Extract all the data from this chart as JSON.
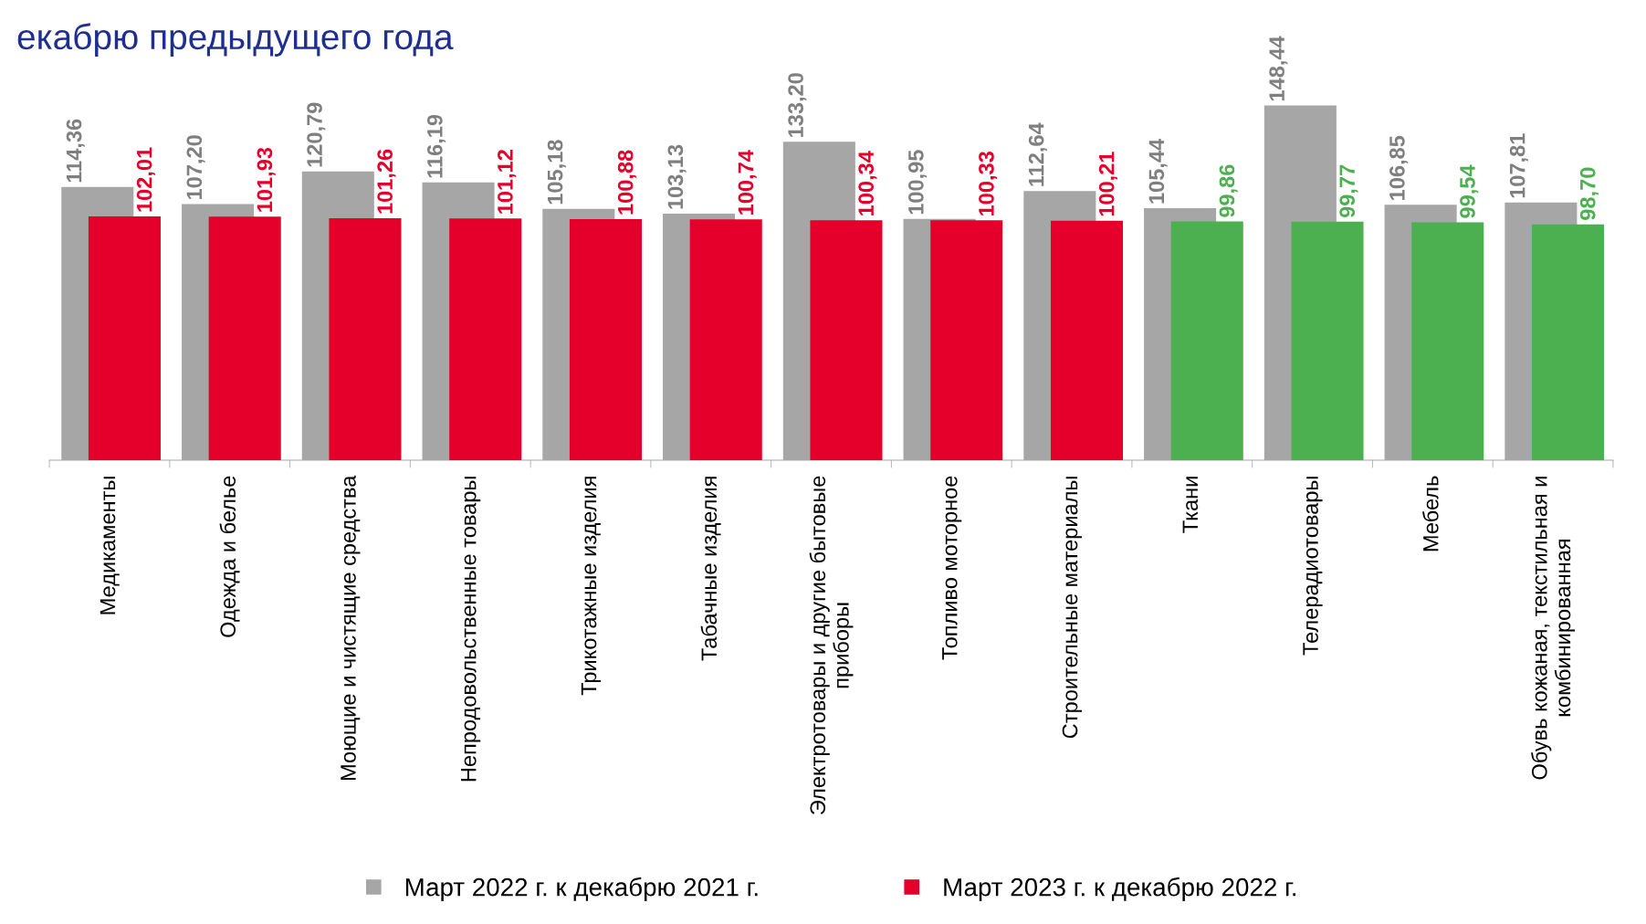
{
  "chart_data": {
    "type": "bar",
    "title": "екабрю предыдущего года",
    "categories": [
      "Медикаменты",
      "Одежда и белье",
      "Моющие и чистящие средства",
      "Непродовольственные товары",
      "Трикотажные изделия",
      "Табачные изделия",
      "Электротовары и другие бытовые\nприборы",
      "Топливо моторное",
      "Строительные материалы",
      "Ткани",
      "Телерадиотовары",
      "Мебель",
      "Обувь кожаная, текстильная и\nкомбинированная"
    ],
    "series": [
      {
        "name": "Март 2022 г. к декабрю 2021 г.",
        "color": "#a6a6a6",
        "values": [
          114.36,
          107.2,
          120.79,
          116.19,
          105.18,
          103.13,
          133.2,
          100.95,
          112.64,
          105.44,
          148.44,
          106.85,
          107.81
        ],
        "value_labels": [
          "114,36",
          "107,20",
          "120,79",
          "116,19",
          "105,18",
          "103,13",
          "133,20",
          "100,95",
          "112,64",
          "105,44",
          "148,44",
          "106,85",
          "107,81"
        ]
      },
      {
        "name": "Март 2023 г. к декабрю 2022 г.",
        "color": "#e4002b",
        "colors": [
          "#e4002b",
          "#e4002b",
          "#e4002b",
          "#e4002b",
          "#e4002b",
          "#e4002b",
          "#e4002b",
          "#e4002b",
          "#e4002b",
          "#4caf50",
          "#4caf50",
          "#4caf50",
          "#4caf50"
        ],
        "values": [
          102.01,
          101.93,
          101.26,
          101.12,
          100.88,
          100.74,
          100.34,
          100.33,
          100.21,
          99.86,
          99.77,
          99.54,
          98.7
        ],
        "value_labels": [
          "102,01",
          "101,93",
          "101,26",
          "101,12",
          "100,88",
          "100,74",
          "100,34",
          "100,33",
          "100,21",
          "99,86",
          "99,77",
          "99,54",
          "98,70"
        ]
      }
    ],
    "tick_labels": "x",
    "grid": false,
    "legend": "bottom"
  }
}
